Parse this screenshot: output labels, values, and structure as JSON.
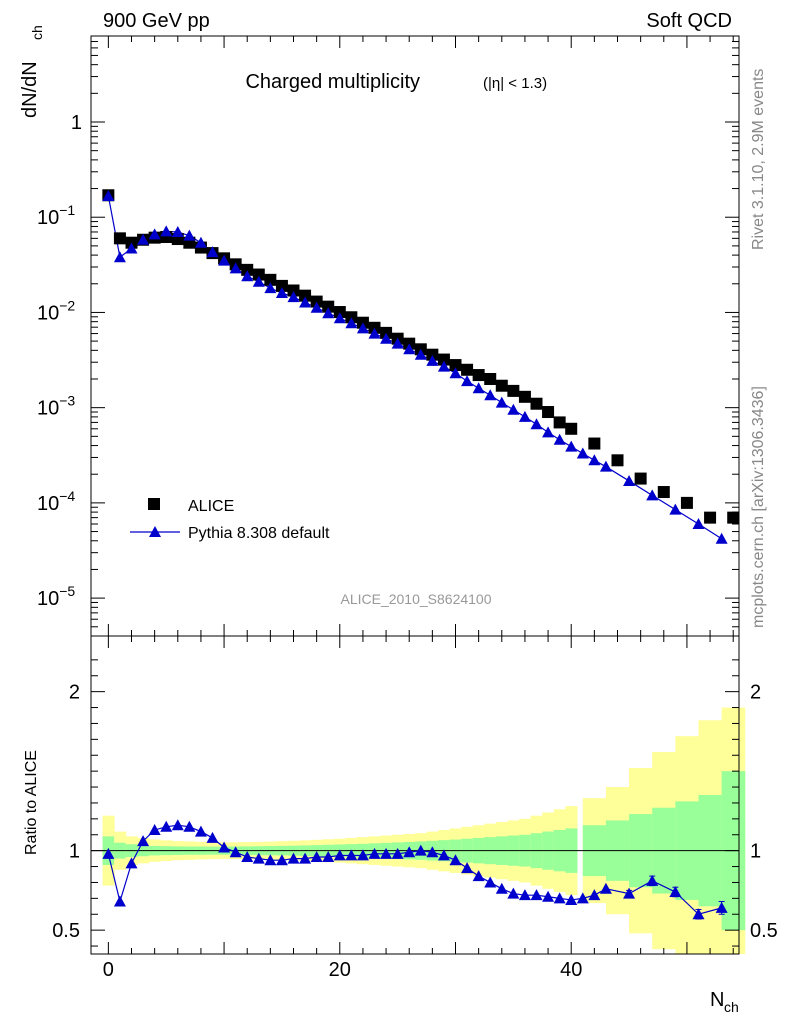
{
  "header": {
    "left": "900 GeV pp",
    "right": "Soft QCD"
  },
  "side_text": {
    "rivet": "Rivet 3.1.10,  2.9M events",
    "mcplots": "mcplots.cern.ch [arXiv:1306.3436]"
  },
  "chart_data": [
    {
      "type": "scatter",
      "panel": "main",
      "title": "Charged multiplicity",
      "title_suffix": "(|η| < 1.3)",
      "ylabel": "dN/dN",
      "ylabel_sub": "ch",
      "watermark": "ALICE_2010_S8624100",
      "yscale": "log",
      "ylim": [
        4e-06,
        8
      ],
      "xlim": [
        -1.5,
        54.5
      ],
      "yticks": [
        {
          "value": 1e-05,
          "base": "10",
          "exp": "−5"
        },
        {
          "value": 0.0001,
          "base": "10",
          "exp": "−4"
        },
        {
          "value": 0.001,
          "base": "10",
          "exp": "−3"
        },
        {
          "value": 0.01,
          "base": "10",
          "exp": "−2"
        },
        {
          "value": 0.1,
          "base": "10",
          "exp": "−1"
        },
        {
          "value": 1,
          "base": "1",
          "exp": ""
        }
      ],
      "legend_position": "bottom-left",
      "series": [
        {
          "name": "ALICE",
          "marker": "square",
          "color": "#000000",
          "x": [
            0,
            1,
            2,
            3,
            4,
            5,
            6,
            7,
            8,
            9,
            10,
            11,
            12,
            13,
            14,
            15,
            16,
            17,
            18,
            19,
            20,
            21,
            22,
            23,
            24,
            25,
            26,
            27,
            28,
            29,
            30,
            31,
            32,
            33,
            34,
            35,
            36,
            37,
            38,
            39,
            40,
            42,
            44,
            46,
            48,
            50,
            52,
            54
          ],
          "y": [
            0.17,
            0.06,
            0.054,
            0.058,
            0.061,
            0.062,
            0.059,
            0.054,
            0.048,
            0.042,
            0.037,
            0.032,
            0.028,
            0.025,
            0.022,
            0.019,
            0.017,
            0.015,
            0.013,
            0.0115,
            0.0101,
            0.0089,
            0.0078,
            0.0069,
            0.0061,
            0.0053,
            0.0047,
            0.0041,
            0.0036,
            0.0032,
            0.0028,
            0.0025,
            0.0022,
            0.002,
            0.0017,
            0.0015,
            0.0013,
            0.0011,
            0.0009,
            0.0007,
            0.0006,
            0.00042,
            0.00028,
            0.00018,
            0.00013,
            0.0001,
            7e-05,
            7e-05
          ]
        },
        {
          "name": "Pythia 8.308 default",
          "marker": "triangle",
          "color": "#0000cc",
          "x": [
            0,
            1,
            2,
            3,
            4,
            5,
            6,
            7,
            8,
            9,
            10,
            11,
            12,
            13,
            14,
            15,
            16,
            17,
            18,
            19,
            20,
            21,
            22,
            23,
            24,
            25,
            26,
            27,
            28,
            29,
            30,
            31,
            32,
            33,
            34,
            35,
            36,
            37,
            38,
            39,
            40,
            41,
            42,
            43,
            45,
            47,
            49,
            51,
            53
          ],
          "y": [
            0.167,
            0.038,
            0.047,
            0.058,
            0.066,
            0.071,
            0.07,
            0.064,
            0.054,
            0.043,
            0.035,
            0.029,
            0.024,
            0.021,
            0.018,
            0.016,
            0.0145,
            0.0127,
            0.0112,
            0.0098,
            0.0087,
            0.0077,
            0.0068,
            0.006,
            0.0053,
            0.0047,
            0.0041,
            0.0036,
            0.0031,
            0.0027,
            0.0023,
            0.0019,
            0.0016,
            0.00135,
            0.00113,
            0.00095,
            0.0008,
            0.00067,
            0.00055,
            0.00046,
            0.00039,
            0.00033,
            0.00028,
            0.00024,
            0.00017,
            0.00012,
            8.5e-05,
            6e-05,
            4.2e-05
          ]
        }
      ]
    },
    {
      "type": "line",
      "panel": "ratio",
      "ylabel": "Ratio to ALICE",
      "xlabel": "N",
      "xlabel_sub": "ch",
      "ylim": [
        0.35,
        2.35
      ],
      "xlim": [
        -1.5,
        54.5
      ],
      "xticks": [
        0,
        20,
        40
      ],
      "yticks_left": [
        "0.5",
        "1",
        "2"
      ],
      "yticks_values": [
        0.5,
        1,
        2
      ],
      "reference_line": 1,
      "band_colors": {
        "inner": "#99ff99",
        "outer": "#ffff99"
      },
      "uncertainty_bands": {
        "x_lo": [
          -0.5,
          0.5,
          1.5,
          2.5,
          3.5,
          4.5,
          5.5,
          6.5,
          7.5,
          8.5,
          9.5,
          10.5,
          11.5,
          12.5,
          13.5,
          14.5,
          15.5,
          16.5,
          17.5,
          18.5,
          19.5,
          20.5,
          21.5,
          22.5,
          23.5,
          24.5,
          25.5,
          26.5,
          27.5,
          28.5,
          29.5,
          30.5,
          31.5,
          32.5,
          33.5,
          34.5,
          35.5,
          36.5,
          37.5,
          38.5,
          39.5,
          41,
          43,
          45,
          47,
          49,
          51,
          53
        ],
        "x_hi": [
          0.5,
          1.5,
          2.5,
          3.5,
          4.5,
          5.5,
          6.5,
          7.5,
          8.5,
          9.5,
          10.5,
          11.5,
          12.5,
          13.5,
          14.5,
          15.5,
          16.5,
          17.5,
          18.5,
          19.5,
          20.5,
          21.5,
          22.5,
          23.5,
          24.5,
          25.5,
          26.5,
          27.5,
          28.5,
          29.5,
          30.5,
          31.5,
          32.5,
          33.5,
          34.5,
          35.5,
          36.5,
          37.5,
          38.5,
          39.5,
          40.5,
          43,
          45,
          47,
          49,
          51,
          53,
          55
        ],
        "inner": [
          0.09,
          0.05,
          0.04,
          0.035,
          0.03,
          0.028,
          0.027,
          0.026,
          0.026,
          0.025,
          0.025,
          0.026,
          0.027,
          0.028,
          0.029,
          0.03,
          0.031,
          0.033,
          0.035,
          0.037,
          0.039,
          0.041,
          0.043,
          0.046,
          0.049,
          0.052,
          0.055,
          0.058,
          0.062,
          0.066,
          0.07,
          0.075,
          0.08,
          0.085,
          0.09,
          0.095,
          0.1,
          0.11,
          0.12,
          0.13,
          0.14,
          0.16,
          0.19,
          0.23,
          0.27,
          0.31,
          0.35,
          0.5
        ],
        "outer": [
          0.22,
          0.12,
          0.09,
          0.08,
          0.07,
          0.065,
          0.06,
          0.058,
          0.055,
          0.053,
          0.052,
          0.053,
          0.054,
          0.055,
          0.057,
          0.06,
          0.062,
          0.065,
          0.068,
          0.072,
          0.075,
          0.08,
          0.085,
          0.09,
          0.095,
          0.1,
          0.105,
          0.11,
          0.12,
          0.13,
          0.14,
          0.15,
          0.16,
          0.17,
          0.18,
          0.19,
          0.2,
          0.22,
          0.24,
          0.26,
          0.28,
          0.33,
          0.4,
          0.52,
          0.62,
          0.72,
          0.82,
          0.9
        ]
      },
      "series": [
        {
          "name": "Pythia 8.308 default",
          "color": "#0000cc",
          "x": [
            0,
            1,
            2,
            3,
            4,
            5,
            6,
            7,
            8,
            9,
            10,
            11,
            12,
            13,
            14,
            15,
            16,
            17,
            18,
            19,
            20,
            21,
            22,
            23,
            24,
            25,
            26,
            27,
            28,
            29,
            30,
            31,
            32,
            33,
            34,
            35,
            36,
            37,
            38,
            39,
            40,
            41,
            42,
            43,
            45,
            47,
            49,
            51,
            53
          ],
          "y": [
            0.98,
            0.68,
            0.92,
            1.06,
            1.13,
            1.15,
            1.16,
            1.15,
            1.12,
            1.08,
            1.02,
            0.99,
            0.96,
            0.95,
            0.94,
            0.94,
            0.95,
            0.95,
            0.96,
            0.96,
            0.97,
            0.97,
            0.97,
            0.98,
            0.98,
            0.98,
            0.99,
            1.0,
            0.99,
            0.97,
            0.94,
            0.89,
            0.84,
            0.8,
            0.76,
            0.73,
            0.72,
            0.72,
            0.71,
            0.7,
            0.69,
            0.7,
            0.72,
            0.76,
            0.73,
            0.81,
            0.74,
            0.6,
            0.64
          ],
          "err": [
            0,
            0,
            0,
            0,
            0,
            0,
            0,
            0,
            0,
            0,
            0,
            0,
            0,
            0,
            0,
            0,
            0,
            0,
            0,
            0,
            0,
            0,
            0,
            0,
            0,
            0,
            0,
            0,
            0,
            0,
            0,
            0,
            0,
            0,
            0,
            0,
            0,
            0,
            0,
            0,
            0,
            0,
            0,
            0,
            0.02,
            0.03,
            0.03,
            0.03,
            0.04
          ]
        }
      ]
    }
  ]
}
